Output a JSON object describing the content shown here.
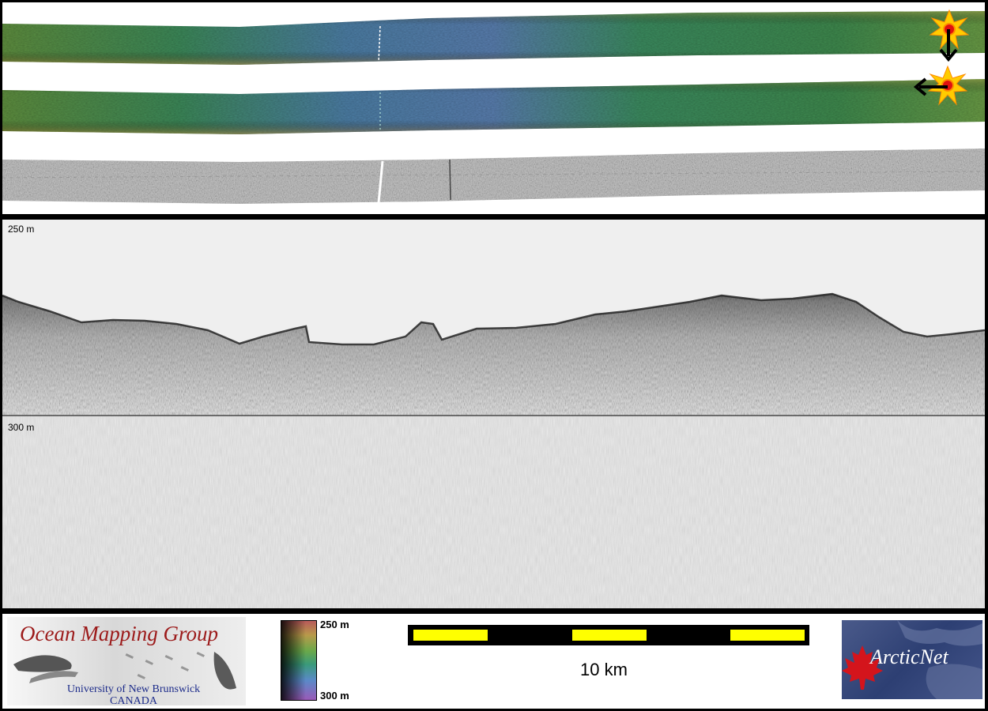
{
  "swath": {
    "icons": [
      "sunburst-icon",
      "arrow-down-icon",
      "arrow-left-icon"
    ]
  },
  "profile": {
    "top_depth_label": "250 m",
    "mid_depth_label": "300 m"
  },
  "legend": {
    "color_ramp_top": "250 m",
    "color_ramp_bottom": "300 m",
    "scale_bar_label": "10 km",
    "scale_bar_colors": [
      "#ffff00",
      "#000000"
    ]
  },
  "logos": {
    "omg_title": "Ocean Mapping Group",
    "omg_subtitle_1": "University of New Brunswick",
    "omg_subtitle_2": "CANADA",
    "arcticnet_text": "ArcticNet"
  }
}
